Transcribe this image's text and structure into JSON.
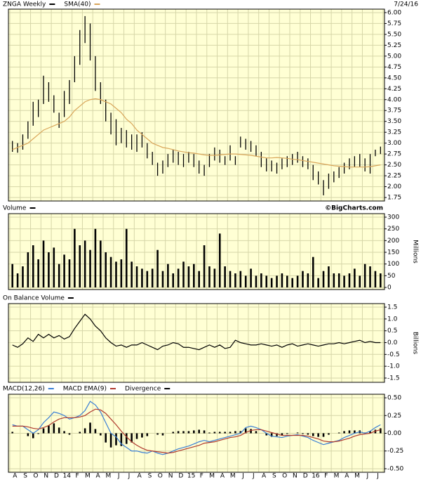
{
  "chart_data": [
    {
      "type": "stock",
      "date": "7/24/16",
      "ylim": [
        1.67,
        6.08
      ],
      "yticks": [
        {
          "value": 1.75,
          "label": "1.75"
        },
        {
          "value": 2,
          "label": "2.00"
        },
        {
          "value": 2.25,
          "label": "2.25"
        },
        {
          "value": 2.5,
          "label": "2.50"
        },
        {
          "value": 2.75,
          "label": "2.75"
        },
        {
          "value": 3,
          "label": "3.00"
        },
        {
          "value": 3.25,
          "label": "3.25"
        },
        {
          "value": 3.5,
          "label": "3.50"
        },
        {
          "value": 3.75,
          "label": "3.75"
        },
        {
          "value": 4,
          "label": "4.00"
        },
        {
          "value": 4.25,
          "label": "4.25"
        },
        {
          "value": 4.5,
          "label": "4.50"
        },
        {
          "value": 4.75,
          "label": "4.75"
        },
        {
          "value": 5,
          "label": "5.00"
        },
        {
          "value": 5.25,
          "label": "5.25"
        },
        {
          "value": 5.5,
          "label": "5.50"
        },
        {
          "value": 5.75,
          "label": "5.75"
        },
        {
          "value": 6,
          "label": "6.00"
        }
      ],
      "series": [
        {
          "name": "ZNGA Weekly",
          "type": "hl",
          "color": "#000000",
          "high": [
            3.05,
            3.0,
            3.2,
            3.5,
            3.95,
            4.0,
            4.55,
            4.4,
            4.1,
            3.7,
            4.2,
            4.45,
            5.0,
            5.6,
            5.92,
            5.75,
            5.0,
            4.4,
            4.0,
            3.7,
            3.55,
            3.35,
            3.3,
            3.2,
            3.2,
            3.25,
            3.0,
            2.8,
            2.55,
            2.6,
            2.75,
            2.85,
            2.8,
            2.75,
            2.8,
            2.75,
            2.6,
            2.5,
            2.75,
            2.9,
            2.85,
            2.7,
            2.95,
            2.7,
            3.15,
            3.1,
            3.05,
            2.95,
            2.8,
            2.65,
            2.6,
            2.55,
            2.65,
            2.7,
            2.75,
            2.8,
            2.7,
            2.65,
            2.5,
            2.35,
            2.15,
            2.3,
            2.35,
            2.45,
            2.55,
            2.65,
            2.7,
            2.75,
            2.65,
            2.75,
            2.85,
            2.92
          ],
          "low": [
            2.8,
            2.78,
            2.85,
            3.1,
            3.4,
            3.6,
            3.9,
            3.95,
            3.7,
            3.35,
            3.6,
            3.9,
            4.4,
            4.8,
            5.3,
            4.9,
            4.2,
            3.9,
            3.5,
            3.2,
            2.95,
            3.0,
            2.9,
            2.85,
            2.8,
            2.9,
            2.65,
            2.5,
            2.25,
            2.3,
            2.45,
            2.55,
            2.5,
            2.45,
            2.55,
            2.45,
            2.3,
            2.25,
            2.45,
            2.6,
            2.55,
            2.5,
            2.6,
            2.5,
            2.9,
            2.85,
            2.8,
            2.7,
            2.45,
            2.35,
            2.35,
            2.3,
            2.4,
            2.45,
            2.5,
            2.55,
            2.45,
            2.4,
            2.15,
            2.05,
            1.8,
            1.95,
            2.1,
            2.2,
            2.3,
            2.4,
            2.45,
            2.45,
            2.35,
            2.3,
            2.7,
            2.75
          ]
        },
        {
          "name": "SMA(40)",
          "type": "line",
          "color": "#d9a65a",
          "values": [
            2.85,
            2.9,
            2.95,
            3.0,
            3.1,
            3.2,
            3.3,
            3.35,
            3.4,
            3.45,
            3.5,
            3.6,
            3.75,
            3.85,
            3.95,
            4.0,
            4.02,
            4.0,
            3.95,
            3.9,
            3.8,
            3.7,
            3.55,
            3.45,
            3.3,
            3.2,
            3.1,
            3.0,
            2.95,
            2.9,
            2.88,
            2.85,
            2.82,
            2.8,
            2.78,
            2.77,
            2.75,
            2.73,
            2.72,
            2.72,
            2.73,
            2.74,
            2.75,
            2.75,
            2.74,
            2.73,
            2.72,
            2.7,
            2.68,
            2.66,
            2.66,
            2.67,
            2.66,
            2.65,
            2.63,
            2.62,
            2.6,
            2.58,
            2.56,
            2.54,
            2.52,
            2.5,
            2.48,
            2.47,
            2.46,
            2.45,
            2.45,
            2.45,
            2.45,
            2.46,
            2.48,
            2.5
          ]
        }
      ]
    },
    {
      "type": "bar",
      "credit": "©BigCharts.com",
      "ylabel": "Millions",
      "ylim": [
        -9,
        315
      ],
      "yticks": [
        0,
        50,
        100,
        150,
        200,
        250,
        300
      ],
      "series": [
        {
          "name": "Volume",
          "type": "bar",
          "color": "#000000",
          "values": [
            100,
            60,
            90,
            150,
            180,
            120,
            200,
            150,
            170,
            100,
            140,
            120,
            250,
            180,
            200,
            160,
            250,
            200,
            150,
            130,
            110,
            120,
            250,
            110,
            90,
            80,
            70,
            80,
            160,
            70,
            100,
            60,
            80,
            110,
            90,
            100,
            70,
            180,
            90,
            80,
            230,
            90,
            70,
            60,
            70,
            50,
            80,
            50,
            60,
            50,
            40,
            50,
            60,
            50,
            40,
            50,
            70,
            60,
            130,
            40,
            70,
            90,
            60,
            60,
            50,
            60,
            80,
            50,
            100,
            90,
            70,
            60
          ]
        }
      ]
    },
    {
      "type": "line",
      "ylabel": "Billions",
      "ylim": [
        -1.68,
        1.65
      ],
      "yticks": [
        -1.5,
        {
          "value": -1,
          "label": "-1.0"
        },
        -0.5,
        {
          "value": 0,
          "label": "0.0"
        },
        0.5,
        {
          "value": 1,
          "label": "1.0"
        },
        1.5
      ],
      "series": [
        {
          "name": "On Balance Volume",
          "type": "line",
          "color": "#000000",
          "values": [
            -0.1,
            -0.2,
            -0.05,
            0.2,
            0.05,
            0.35,
            0.2,
            0.35,
            0.2,
            0.3,
            0.15,
            0.25,
            0.6,
            0.9,
            1.2,
            1.0,
            0.7,
            0.5,
            0.2,
            0.0,
            -0.15,
            -0.1,
            -0.2,
            -0.1,
            -0.1,
            0.0,
            -0.1,
            -0.2,
            -0.3,
            -0.15,
            -0.1,
            0.0,
            -0.05,
            -0.2,
            -0.2,
            -0.25,
            -0.3,
            -0.2,
            -0.1,
            -0.2,
            -0.1,
            -0.25,
            -0.2,
            0.1,
            0.0,
            -0.05,
            -0.1,
            -0.1,
            -0.05,
            -0.1,
            -0.15,
            -0.1,
            -0.2,
            -0.1,
            -0.05,
            -0.15,
            -0.1,
            -0.05,
            -0.1,
            -0.15,
            -0.1,
            -0.05,
            -0.05,
            0.0,
            -0.05,
            0.0,
            0.05,
            0.1,
            0.0,
            0.05,
            0.0,
            0.0
          ]
        }
      ]
    },
    {
      "type": "macd",
      "ylim": [
        -0.55,
        0.55
      ],
      "yticks": [
        {
          "value": -0.5,
          "label": "-0.50"
        },
        -0.25,
        {
          "value": 0,
          "label": "0.00"
        },
        0.25,
        {
          "value": 0.5,
          "label": "0.50"
        }
      ],
      "x_labels": [
        "A",
        "S",
        "O",
        "N",
        "D",
        "14",
        "F",
        "M",
        "A",
        "M",
        "J",
        "J",
        "A",
        "S",
        "O",
        "N",
        "D",
        "15",
        "F",
        "M",
        "A",
        "M",
        "J",
        "J",
        "A",
        "S",
        "O",
        "N",
        "D",
        "16",
        "F",
        "M",
        "A",
        "M",
        "J",
        "J"
      ],
      "series": [
        {
          "name": "MACD(12,26)",
          "type": "line",
          "color": "#3a7fd5",
          "values": [
            0.12,
            0.1,
            0.1,
            0.05,
            0.0,
            0.05,
            0.15,
            0.22,
            0.3,
            0.28,
            0.25,
            0.2,
            0.22,
            0.25,
            0.32,
            0.45,
            0.4,
            0.3,
            0.15,
            0.0,
            -0.05,
            -0.15,
            -0.2,
            -0.25,
            -0.25,
            -0.27,
            -0.28,
            -0.25,
            -0.28,
            -0.3,
            -0.28,
            -0.25,
            -0.22,
            -0.2,
            -0.18,
            -0.15,
            -0.12,
            -0.1,
            -0.12,
            -0.1,
            -0.08,
            -0.06,
            -0.04,
            -0.02,
            0.0,
            0.08,
            0.1,
            0.08,
            0.05,
            0.0,
            -0.04,
            -0.05,
            -0.06,
            -0.04,
            -0.03,
            -0.02,
            -0.04,
            -0.06,
            -0.1,
            -0.13,
            -0.16,
            -0.14,
            -0.12,
            -0.1,
            -0.06,
            -0.03,
            0.0,
            0.02,
            0.0,
            0.03,
            0.08,
            0.12
          ]
        },
        {
          "name": "MACD EMA(9)",
          "type": "line",
          "color": "#b03a2e",
          "values": [
            0.1,
            0.1,
            0.1,
            0.09,
            0.07,
            0.06,
            0.08,
            0.11,
            0.16,
            0.2,
            0.22,
            0.22,
            0.22,
            0.23,
            0.25,
            0.3,
            0.34,
            0.33,
            0.28,
            0.2,
            0.12,
            0.03,
            -0.05,
            -0.12,
            -0.17,
            -0.21,
            -0.24,
            -0.25,
            -0.26,
            -0.27,
            -0.28,
            -0.27,
            -0.25,
            -0.23,
            -0.21,
            -0.19,
            -0.17,
            -0.14,
            -0.13,
            -0.12,
            -0.1,
            -0.08,
            -0.06,
            -0.05,
            -0.03,
            0.01,
            0.04,
            0.05,
            0.05,
            0.03,
            0.01,
            -0.01,
            -0.03,
            -0.03,
            -0.03,
            -0.03,
            -0.03,
            -0.04,
            -0.06,
            -0.08,
            -0.11,
            -0.12,
            -0.12,
            -0.11,
            -0.09,
            -0.07,
            -0.04,
            -0.02,
            -0.01,
            0.0,
            0.03,
            0.05
          ]
        },
        {
          "name": "Divergence",
          "type": "bar",
          "color": "#000000",
          "values": [
            0.02,
            0.0,
            0,
            -0.04,
            -0.07,
            -0.01,
            0.07,
            0.11,
            0.14,
            0.08,
            0.03,
            -0.02,
            0,
            0.02,
            0.07,
            0.15,
            0.06,
            -0.03,
            -0.13,
            -0.2,
            -0.17,
            -0.18,
            -0.15,
            -0.13,
            -0.08,
            -0.06,
            -0.04,
            0,
            -0.02,
            -0.03,
            0,
            0.02,
            0.03,
            0.03,
            0.03,
            0.04,
            0.05,
            0.04,
            0.01,
            0.02,
            0.02,
            0.02,
            0.02,
            0.03,
            0.03,
            0.07,
            0.06,
            0.03,
            0,
            -0.03,
            -0.05,
            -0.04,
            -0.03,
            -0.01,
            0,
            0.01,
            -0.01,
            -0.02,
            -0.04,
            -0.05,
            -0.05,
            -0.02,
            0,
            0.01,
            0.03,
            0.04,
            0.04,
            0.04,
            0.01,
            0.03,
            0.05,
            0.07
          ]
        }
      ]
    }
  ]
}
